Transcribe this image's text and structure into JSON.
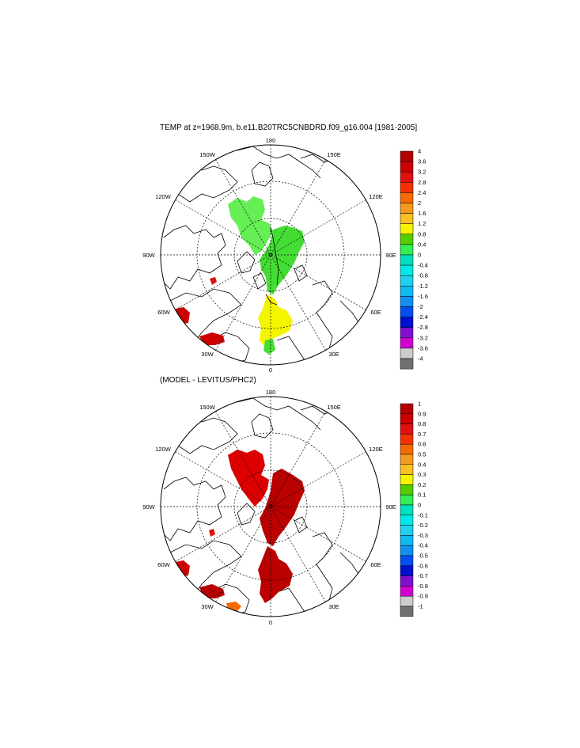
{
  "top_panel": {
    "title": "TEMP at z=1968.9m, b.e11.B20TRC5CNBDRD.f09_g16.004 [1981-2005]",
    "lon_labels": {
      "n180": "180",
      "l150w": "150W",
      "l150e": "150E",
      "l120w": "120W",
      "l120e": "120E",
      "l90w": "90W",
      "l90e": "90E",
      "l60w": "60W",
      "l60e": "60E",
      "l30w": "30W",
      "l30e": "30E",
      "l0": "0"
    },
    "colorbar": {
      "labels": [
        "4",
        "3.6",
        "3.2",
        "2.8",
        "2.4",
        "2",
        "1.6",
        "1.2",
        "0.8",
        "0.4",
        "0",
        "-0.4",
        "-0.8",
        "-1.2",
        "-1.6",
        "-2",
        "-2.4",
        "-2.8",
        "-3.2",
        "-3.6",
        "-4"
      ],
      "colors": [
        "#b30000",
        "#cc0000",
        "#e01010",
        "#f53000",
        "#f56a00",
        "#f59a20",
        "#fcc020",
        "#f5f500",
        "#55cc00",
        "#33ee55",
        "#00e0c0",
        "#00e8e8",
        "#20d0f0",
        "#10b8f0",
        "#1090f0",
        "#0050f0",
        "#0010d0",
        "#8010d0",
        "#d000d0",
        "#cccccc",
        "#707070"
      ]
    }
  },
  "bottom_panel": {
    "title": "(MODEL - LEVITUS/PHC2)",
    "lon_labels": {
      "n180": "180",
      "l150w": "150W",
      "l150e": "150E",
      "l120w": "120W",
      "l120e": "120E",
      "l90w": "90W",
      "l90e": "90E",
      "l60w": "60W",
      "l60e": "60E",
      "l30w": "30W",
      "l30e": "30E",
      "l0": "0"
    },
    "colorbar": {
      "labels": [
        "1",
        "0.9",
        "0.8",
        "0.7",
        "0.6",
        "0.5",
        "0.4",
        "0.3",
        "0.2",
        "0.1",
        "0",
        "-0.1",
        "-0.2",
        "-0.3",
        "-0.4",
        "-0.5",
        "-0.6",
        "-0.7",
        "-0.8",
        "-0.9",
        "-1"
      ],
      "colors": [
        "#b30000",
        "#cc0000",
        "#e01010",
        "#f53000",
        "#f56a00",
        "#f59a20",
        "#fcc020",
        "#f5f500",
        "#55cc00",
        "#33ee55",
        "#00e0c0",
        "#00e8e8",
        "#20d0f0",
        "#10b8f0",
        "#1090f0",
        "#0050f0",
        "#0010d0",
        "#8010d0",
        "#d000d0",
        "#cccccc",
        "#707070"
      ]
    }
  },
  "colors": {
    "green_light": "#66ee55",
    "green": "#44dd33",
    "yellow": "#f5f500",
    "red": "#dd0000",
    "dark_red": "#bb0000"
  }
}
